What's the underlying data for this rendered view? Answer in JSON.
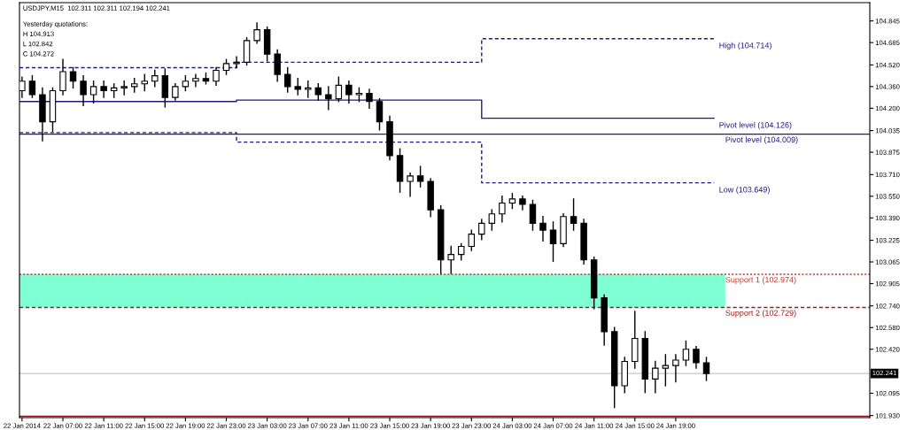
{
  "chart_data": {
    "type": "candlestick",
    "title": "USDJPY,M15  102.311 102.311 102.194 102.241",
    "annotations": [
      "Yesterday quotations:",
      "H 104.913",
      "L 102.842",
      "C 104.272",
      {
        "text": "High (104.714)",
        "x": "2014-01-24T22:45",
        "y": 104.714
      },
      {
        "text": "Pivot level (104.126)",
        "x": "2014-01-24T22:45",
        "y": 104.126
      },
      {
        "text": "Low (103.649)",
        "x": "2014-01-24T22:45",
        "y": 103.649
      }
    ],
    "x": [
      "2014-01-22T03:00",
      "2014-01-22T04:00",
      "2014-01-22T05:00",
      "2014-01-22T06:00",
      "2014-01-22T07:00",
      "2014-01-22T08:00",
      "2014-01-22T09:00",
      "2014-01-22T10:00",
      "2014-01-22T11:00",
      "2014-01-22T12:00",
      "2014-01-22T13:00",
      "2014-01-22T14:00",
      "2014-01-22T15:00",
      "2014-01-22T16:00",
      "2014-01-22T17:00",
      "2014-01-22T18:00",
      "2014-01-22T19:00",
      "2014-01-22T20:00",
      "2014-01-22T21:00",
      "2014-01-22T22:00",
      "2014-01-22T23:00",
      "2014-01-23T00:00",
      "2014-01-23T01:00",
      "2014-01-23T02:00",
      "2014-01-23T03:00",
      "2014-01-23T04:00",
      "2014-01-23T05:00",
      "2014-01-23T06:00",
      "2014-01-23T07:00",
      "2014-01-23T08:00",
      "2014-01-23T09:00",
      "2014-01-23T10:00",
      "2014-01-23T11:00",
      "2014-01-23T12:00",
      "2014-01-23T13:00",
      "2014-01-23T14:00",
      "2014-01-23T15:00",
      "2014-01-23T16:00",
      "2014-01-23T17:00",
      "2014-01-23T18:00",
      "2014-01-23T19:00",
      "2014-01-23T20:00",
      "2014-01-23T21:00",
      "2014-01-23T22:00",
      "2014-01-23T23:00",
      "2014-01-24T00:00",
      "2014-01-24T01:00",
      "2014-01-24T02:00",
      "2014-01-24T03:00",
      "2014-01-24T04:00",
      "2014-01-24T05:00",
      "2014-01-24T06:00",
      "2014-01-24T07:00",
      "2014-01-24T08:00",
      "2014-01-24T09:00",
      "2014-01-24T10:00",
      "2014-01-24T11:00",
      "2014-01-24T12:00",
      "2014-01-24T13:00",
      "2014-01-24T14:00",
      "2014-01-24T15:00",
      "2014-01-24T16:00",
      "2014-01-24T17:00",
      "2014-01-24T18:00",
      "2014-01-24T19:00",
      "2014-01-24T20:00",
      "2014-01-24T21:00",
      "2014-01-24T22:00"
    ],
    "ohlc": [
      [
        104.33,
        104.43,
        104.28,
        104.4
      ],
      [
        104.4,
        104.44,
        104.28,
        104.3
      ],
      [
        104.3,
        104.35,
        103.96,
        104.1
      ],
      [
        104.1,
        104.35,
        104.03,
        104.33
      ],
      [
        104.33,
        104.56,
        104.3,
        104.47
      ],
      [
        104.47,
        104.5,
        104.35,
        104.4
      ],
      [
        104.4,
        104.44,
        104.22,
        104.3
      ],
      [
        104.3,
        104.4,
        104.24,
        104.36
      ],
      [
        104.36,
        104.4,
        104.28,
        104.33
      ],
      [
        104.33,
        104.38,
        104.28,
        104.35
      ],
      [
        104.35,
        104.4,
        104.3,
        104.36
      ],
      [
        104.36,
        104.42,
        104.32,
        104.38
      ],
      [
        104.38,
        104.45,
        104.33,
        104.4
      ],
      [
        104.4,
        104.48,
        104.36,
        104.44
      ],
      [
        104.44,
        104.49,
        104.21,
        104.28
      ],
      [
        104.28,
        104.38,
        104.26,
        104.36
      ],
      [
        104.36,
        104.44,
        104.33,
        104.4
      ],
      [
        104.4,
        104.45,
        104.36,
        104.42
      ],
      [
        104.42,
        104.46,
        104.38,
        104.4
      ],
      [
        104.4,
        104.5,
        104.37,
        104.48
      ],
      [
        104.48,
        104.56,
        104.45,
        104.53
      ],
      [
        104.53,
        104.58,
        104.5,
        104.54
      ],
      [
        104.54,
        104.72,
        104.52,
        104.7
      ],
      [
        104.7,
        104.83,
        104.68,
        104.78
      ],
      [
        104.78,
        104.8,
        104.55,
        104.6
      ],
      [
        104.6,
        104.63,
        104.4,
        104.45
      ],
      [
        104.45,
        104.5,
        104.32,
        104.36
      ],
      [
        104.36,
        104.42,
        104.3,
        104.34
      ],
      [
        104.34,
        104.4,
        104.28,
        104.35
      ],
      [
        104.35,
        104.38,
        104.26,
        104.3
      ],
      [
        104.3,
        104.36,
        104.19,
        104.27
      ],
      [
        104.27,
        104.43,
        104.25,
        104.37
      ],
      [
        104.37,
        104.4,
        104.24,
        104.3
      ],
      [
        104.3,
        104.35,
        104.25,
        104.31
      ],
      [
        104.31,
        104.34,
        104.2,
        104.25
      ],
      [
        104.25,
        104.27,
        104.04,
        104.1
      ],
      [
        104.1,
        104.14,
        103.82,
        103.85
      ],
      [
        103.85,
        103.9,
        103.58,
        103.66
      ],
      [
        103.66,
        103.72,
        103.55,
        103.7
      ],
      [
        103.7,
        103.77,
        103.62,
        103.66
      ],
      [
        103.66,
        103.68,
        103.4,
        103.45
      ],
      [
        103.45,
        103.48,
        102.98,
        103.08
      ],
      [
        103.08,
        103.18,
        102.98,
        103.12
      ],
      [
        103.12,
        103.2,
        103.08,
        103.18
      ],
      [
        103.18,
        103.3,
        103.15,
        103.27
      ],
      [
        103.27,
        103.38,
        103.23,
        103.35
      ],
      [
        103.35,
        103.45,
        103.3,
        103.42
      ],
      [
        103.42,
        103.55,
        103.36,
        103.5
      ],
      [
        103.5,
        103.57,
        103.46,
        103.53
      ],
      [
        103.53,
        103.55,
        103.45,
        103.49
      ],
      [
        103.49,
        103.52,
        103.3,
        103.35
      ],
      [
        103.35,
        103.4,
        103.22,
        103.3
      ],
      [
        103.3,
        103.36,
        103.07,
        103.2
      ],
      [
        103.2,
        103.42,
        103.18,
        103.4
      ],
      [
        103.4,
        103.53,
        103.3,
        103.35
      ],
      [
        103.35,
        103.38,
        103.05,
        103.08
      ],
      [
        103.08,
        103.1,
        102.72,
        102.8
      ],
      [
        102.8,
        102.82,
        102.45,
        102.55
      ],
      [
        102.55,
        102.58,
        101.99,
        102.15
      ],
      [
        102.15,
        102.36,
        102.1,
        102.33
      ],
      [
        102.33,
        102.7,
        102.28,
        102.5
      ],
      [
        102.5,
        102.55,
        102.1,
        102.2
      ],
      [
        102.2,
        102.33,
        102.1,
        102.28
      ],
      [
        102.28,
        102.38,
        102.15,
        102.3
      ],
      [
        102.3,
        102.38,
        102.18,
        102.34
      ],
      [
        102.34,
        102.48,
        102.3,
        102.42
      ],
      [
        102.42,
        102.44,
        102.28,
        102.32
      ],
      [
        102.32,
        102.36,
        102.19,
        102.24
      ]
    ],
    "color": "#000000",
    "series": [
      {
        "type": "step",
        "color": "#1c1c80",
        "line_style": "dashed",
        "x": [
          "2014-01-22T02:45",
          "2014-01-23T00:00",
          "2014-01-24T00:00",
          "2014-01-24T22:45"
        ],
        "values": [
          104.5,
          104.54,
          104.714,
          104.714
        ]
      },
      {
        "type": "step",
        "color": "#1c1c80",
        "line_style": "solid",
        "x": [
          "2014-01-22T02:45",
          "2014-01-23T00:00",
          "2014-01-24T00:00",
          "2014-01-24T22:45"
        ],
        "values": [
          104.25,
          104.26,
          104.126,
          104.126
        ]
      },
      {
        "type": "step",
        "color": "#1c1c80",
        "line_style": "dashed",
        "x": [
          "2014-01-22T02:45",
          "2014-01-23T00:00",
          "2014-01-24T00:00",
          "2014-01-24T22:45"
        ],
        "values": [
          104.02,
          103.95,
          103.649,
          103.649
        ]
      }
    ],
    "ref_lines": [
      {
        "axis": "y",
        "value": 104.009,
        "label": "Pivot level (104.009)",
        "color": "#1c1c80",
        "line_style": "solid"
      },
      {
        "axis": "y",
        "value": 102.974,
        "label": "Support 1 (102.974)",
        "color": "#c0392b",
        "line_style": "dotted"
      },
      {
        "axis": "y",
        "value": 102.729,
        "label": "Support 2 (102.729)",
        "color": "#a01818",
        "line_style": "dashed"
      },
      {
        "axis": "y",
        "value": 101.925,
        "color": "#8b1a1a",
        "line_style": "solid"
      },
      {
        "axis": "y",
        "value": 102.241,
        "label": "102.241",
        "color": "#c8c8c8",
        "line_style": "solid"
      }
    ],
    "bands": [
      {
        "axis": "y",
        "from": 102.729,
        "to": 102.974,
        "color": "#7fffd4"
      }
    ],
    "xlim": [
      "2014-01-22T02:45",
      "2014-01-25T14:00"
    ],
    "ylim": [
      101.915,
      104.98
    ],
    "yticks": [
      104.845,
      104.685,
      {
        "value": 104.52,
        "label": "104.520"
      },
      {
        "value": 104.36,
        "label": "104.360"
      },
      {
        "value": 104.2,
        "label": "104.200"
      },
      104.035,
      103.875,
      {
        "value": 103.71,
        "label": "103.710"
      },
      {
        "value": 103.55,
        "label": "103.550"
      },
      {
        "value": 103.39,
        "label": "103.390"
      },
      103.225,
      103.065,
      102.905,
      {
        "value": 102.74,
        "label": "102.740"
      },
      {
        "value": 102.58,
        "label": "102.580"
      },
      {
        "value": 102.42,
        "label": "102.420"
      },
      102.095,
      {
        "value": 101.93,
        "label": "101.930"
      }
    ],
    "xticks": [
      {
        "value": "2014-01-22T03:00",
        "label": "22 Jan 2014"
      },
      {
        "value": "2014-01-22T07:00",
        "label": "22 Jan 07:00"
      },
      {
        "value": "2014-01-22T11:00",
        "label": "22 Jan 11:00"
      },
      {
        "value": "2014-01-22T15:00",
        "label": "22 Jan 15:00"
      },
      {
        "value": "2014-01-22T19:00",
        "label": "22 Jan 19:00"
      },
      {
        "value": "2014-01-22T23:00",
        "label": "22 Jan 23:00"
      },
      {
        "value": "2014-01-23T03:00",
        "label": "23 Jan 03:00"
      },
      {
        "value": "2014-01-23T07:00",
        "label": "23 Jan 07:00"
      },
      {
        "value": "2014-01-23T11:00",
        "label": "23 Jan 11:00"
      },
      {
        "value": "2014-01-23T15:00",
        "label": "23 Jan 15:00"
      },
      {
        "value": "2014-01-23T19:00",
        "label": "23 Jan 19:00"
      },
      {
        "value": "2014-01-23T23:00",
        "label": "23 Jan 23:00"
      },
      {
        "value": "2014-01-24T03:00",
        "label": "24 Jan 03:00"
      },
      {
        "value": "2014-01-24T07:00",
        "label": "24 Jan 07:00"
      },
      {
        "value": "2014-01-24T11:00",
        "label": "24 Jan 11:00"
      },
      {
        "value": "2014-01-24T15:00",
        "label": "24 Jan 15:00"
      },
      {
        "value": "2014-01-24T19:00",
        "label": "24 Jan 19:00"
      }
    ]
  }
}
